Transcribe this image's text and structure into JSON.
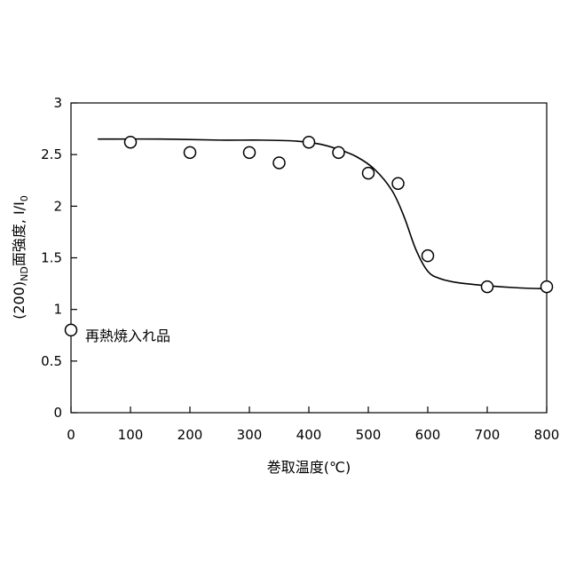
{
  "chart_data": {
    "type": "scatter",
    "title": "",
    "xlabel": "巻取温度(℃)",
    "ylabel": {
      "prefix": "(200)",
      "subscript": "ND",
      "main": "面強度, I/I",
      "sub2": "0"
    },
    "xlim": [
      0,
      800
    ],
    "ylim": [
      0,
      3
    ],
    "xticks": [
      "0",
      "100",
      "200",
      "300",
      "400",
      "500",
      "600",
      "700",
      "800"
    ],
    "yticks": [
      "0",
      "0.5",
      "1",
      "1.5",
      "2",
      "2.5",
      "3"
    ],
    "grid": false,
    "series": [
      {
        "kind": "points",
        "marker": "open-circle",
        "points": [
          {
            "x": 0,
            "y": 0.8
          },
          {
            "x": 100,
            "y": 2.62
          },
          {
            "x": 200,
            "y": 2.52
          },
          {
            "x": 300,
            "y": 2.52
          },
          {
            "x": 350,
            "y": 2.42
          },
          {
            "x": 400,
            "y": 2.62
          },
          {
            "x": 450,
            "y": 2.52
          },
          {
            "x": 500,
            "y": 2.32
          },
          {
            "x": 550,
            "y": 2.22
          },
          {
            "x": 600,
            "y": 1.52
          },
          {
            "x": 700,
            "y": 1.22
          },
          {
            "x": 800,
            "y": 1.22
          }
        ]
      },
      {
        "kind": "fit-curve",
        "points": [
          {
            "x": 45,
            "y": 2.65
          },
          {
            "x": 150,
            "y": 2.65
          },
          {
            "x": 250,
            "y": 2.64
          },
          {
            "x": 320,
            "y": 2.64
          },
          {
            "x": 380,
            "y": 2.63
          },
          {
            "x": 420,
            "y": 2.6
          },
          {
            "x": 450,
            "y": 2.55
          },
          {
            "x": 480,
            "y": 2.48
          },
          {
            "x": 510,
            "y": 2.36
          },
          {
            "x": 540,
            "y": 2.15
          },
          {
            "x": 560,
            "y": 1.9
          },
          {
            "x": 580,
            "y": 1.58
          },
          {
            "x": 600,
            "y": 1.37
          },
          {
            "x": 620,
            "y": 1.3
          },
          {
            "x": 650,
            "y": 1.26
          },
          {
            "x": 700,
            "y": 1.23
          },
          {
            "x": 750,
            "y": 1.21
          },
          {
            "x": 800,
            "y": 1.2
          }
        ]
      }
    ],
    "annotations": [
      {
        "text": "再熱焼入れ品",
        "x": 0,
        "y": 0.8
      }
    ]
  }
}
